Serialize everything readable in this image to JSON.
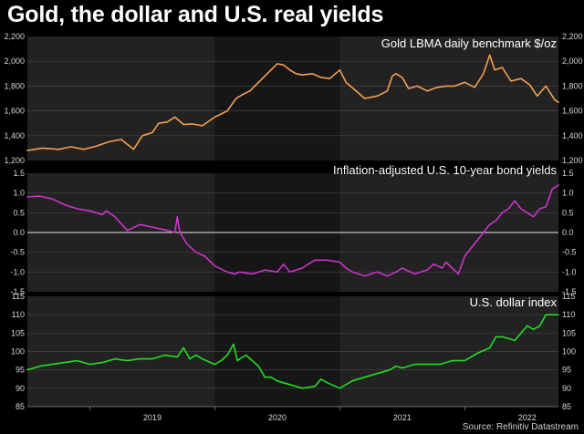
{
  "title": "Gold, the dollar and U.S. real yields",
  "source": "Source: Refinitiv Datastream",
  "chart_data": [
    {
      "type": "line",
      "title": "Gold LBMA daily benchmark $/oz",
      "color": "#f5a04e",
      "ylim": [
        1200,
        2200
      ],
      "yticks": [
        1200,
        1400,
        1600,
        1800,
        2000,
        2200
      ],
      "ytick_labels": [
        "1,200",
        "1,400",
        "1,600",
        "1,800",
        "2,000",
        "2,200"
      ],
      "grid": true,
      "x": [
        2018.5,
        2018.62,
        2018.75,
        2018.85,
        2018.95,
        2019.05,
        2019.15,
        2019.25,
        2019.35,
        2019.42,
        2019.5,
        2019.55,
        2019.62,
        2019.68,
        2019.75,
        2019.82,
        2019.9,
        2020.0,
        2020.05,
        2020.1,
        2020.17,
        2020.22,
        2020.28,
        2020.35,
        2020.42,
        2020.5,
        2020.55,
        2020.6,
        2020.65,
        2020.7,
        2020.78,
        2020.85,
        2020.92,
        2021.0,
        2021.05,
        2021.12,
        2021.2,
        2021.3,
        2021.38,
        2021.42,
        2021.45,
        2021.5,
        2021.55,
        2021.62,
        2021.7,
        2021.78,
        2021.85,
        2021.92,
        2022.0,
        2022.08,
        2022.15,
        2022.2,
        2022.24,
        2022.3,
        2022.37,
        2022.45,
        2022.52,
        2022.58,
        2022.65,
        2022.72,
        2022.75
      ],
      "series": [
        {
          "values": [
            1280,
            1300,
            1290,
            1310,
            1290,
            1315,
            1350,
            1370,
            1290,
            1400,
            1425,
            1500,
            1510,
            1550,
            1490,
            1495,
            1480,
            1550,
            1575,
            1600,
            1700,
            1730,
            1760,
            1830,
            1900,
            1980,
            1970,
            1930,
            1900,
            1890,
            1900,
            1870,
            1860,
            1930,
            1830,
            1770,
            1700,
            1720,
            1760,
            1880,
            1900,
            1870,
            1780,
            1800,
            1760,
            1790,
            1800,
            1800,
            1830,
            1790,
            1900,
            2050,
            1930,
            1950,
            1840,
            1860,
            1810,
            1720,
            1800,
            1690,
            1670
          ]
        }
      ]
    },
    {
      "type": "line",
      "title": "Inflation-adjusted U.S. 10-year bond yields",
      "color": "#cc33cc",
      "ylim": [
        -1.5,
        1.5
      ],
      "yticks": [
        -1.5,
        -1.0,
        -0.5,
        0.0,
        0.5,
        1.0,
        1.5
      ],
      "ytick_labels": [
        "-1.5",
        "-1.0",
        "-0.5",
        "0.0",
        "0.5",
        "1.0",
        "1.5"
      ],
      "grid": true,
      "x": [
        2018.5,
        2018.6,
        2018.7,
        2018.8,
        2018.9,
        2019.0,
        2019.1,
        2019.13,
        2019.2,
        2019.3,
        2019.4,
        2019.48,
        2019.55,
        2019.62,
        2019.68,
        2019.7,
        2019.72,
        2019.78,
        2019.85,
        2019.92,
        2020.0,
        2020.1,
        2020.16,
        2020.2,
        2020.3,
        2020.4,
        2020.5,
        2020.55,
        2020.6,
        2020.7,
        2020.8,
        2020.9,
        2021.0,
        2021.05,
        2021.1,
        2021.2,
        2021.3,
        2021.38,
        2021.45,
        2021.5,
        2021.6,
        2021.65,
        2021.7,
        2021.75,
        2021.82,
        2021.85,
        2021.9,
        2021.95,
        2022.0,
        2022.05,
        2022.1,
        2022.15,
        2022.2,
        2022.25,
        2022.3,
        2022.35,
        2022.4,
        2022.45,
        2022.5,
        2022.55,
        2022.6,
        2022.65,
        2022.7,
        2022.75
      ],
      "series": [
        {
          "values": [
            0.9,
            0.92,
            0.85,
            0.7,
            0.6,
            0.55,
            0.45,
            0.55,
            0.4,
            0.05,
            0.2,
            0.15,
            0.1,
            0.05,
            0.0,
            0.4,
            0.0,
            -0.3,
            -0.5,
            -0.6,
            -0.85,
            -1.0,
            -1.05,
            -1.0,
            -1.05,
            -0.95,
            -1.0,
            -0.8,
            -1.0,
            -0.9,
            -0.7,
            -0.7,
            -0.75,
            -0.9,
            -1.0,
            -1.1,
            -1.0,
            -1.1,
            -1.0,
            -0.9,
            -1.05,
            -1.0,
            -0.95,
            -0.8,
            -0.9,
            -0.75,
            -0.9,
            -1.05,
            -0.6,
            -0.4,
            -0.2,
            0.0,
            0.2,
            0.3,
            0.5,
            0.6,
            0.8,
            0.6,
            0.5,
            0.4,
            0.6,
            0.65,
            1.1,
            1.2
          ]
        }
      ]
    },
    {
      "type": "line",
      "title": "U.S. dollar index",
      "color": "#22dd22",
      "ylim": [
        85,
        115
      ],
      "yticks": [
        85,
        90,
        95,
        100,
        105,
        110,
        115
      ],
      "ytick_labels": [
        "85",
        "90",
        "95",
        "100",
        "105",
        "110",
        "115"
      ],
      "grid": true,
      "x": [
        2018.5,
        2018.6,
        2018.7,
        2018.8,
        2018.9,
        2019.0,
        2019.1,
        2019.2,
        2019.3,
        2019.4,
        2019.5,
        2019.6,
        2019.7,
        2019.75,
        2019.8,
        2019.85,
        2019.9,
        2020.0,
        2020.05,
        2020.1,
        2020.15,
        2020.18,
        2020.2,
        2020.25,
        2020.3,
        2020.35,
        2020.4,
        2020.45,
        2020.5,
        2020.6,
        2020.7,
        2020.8,
        2020.85,
        2020.9,
        2021.0,
        2021.05,
        2021.1,
        2021.2,
        2021.3,
        2021.4,
        2021.45,
        2021.5,
        2021.6,
        2021.7,
        2021.8,
        2021.9,
        2022.0,
        2022.1,
        2022.2,
        2022.25,
        2022.3,
        2022.4,
        2022.5,
        2022.55,
        2022.6,
        2022.65,
        2022.7,
        2022.75
      ],
      "series": [
        {
          "values": [
            95,
            96,
            96.5,
            97,
            97.5,
            96.5,
            97,
            98,
            97.5,
            98,
            98,
            99,
            98.5,
            101,
            98,
            99,
            98,
            96.5,
            97.5,
            99,
            102,
            97.5,
            98,
            99,
            97.5,
            96,
            93,
            93,
            92,
            91,
            90,
            90.5,
            92.5,
            91.5,
            90,
            91,
            92,
            93,
            94,
            95,
            96,
            95.5,
            96.5,
            96.5,
            96.5,
            97.5,
            97.5,
            99.5,
            101,
            104,
            104,
            103,
            107,
            106,
            107,
            110,
            110,
            110
          ]
        }
      ]
    }
  ],
  "x_axis": {
    "range": [
      2018.5,
      2022.75
    ],
    "ticks": [
      2019.0,
      2020.0,
      2021.0,
      2022.0
    ],
    "labels": [
      "2019",
      "2020",
      "2021",
      "2022"
    ]
  }
}
